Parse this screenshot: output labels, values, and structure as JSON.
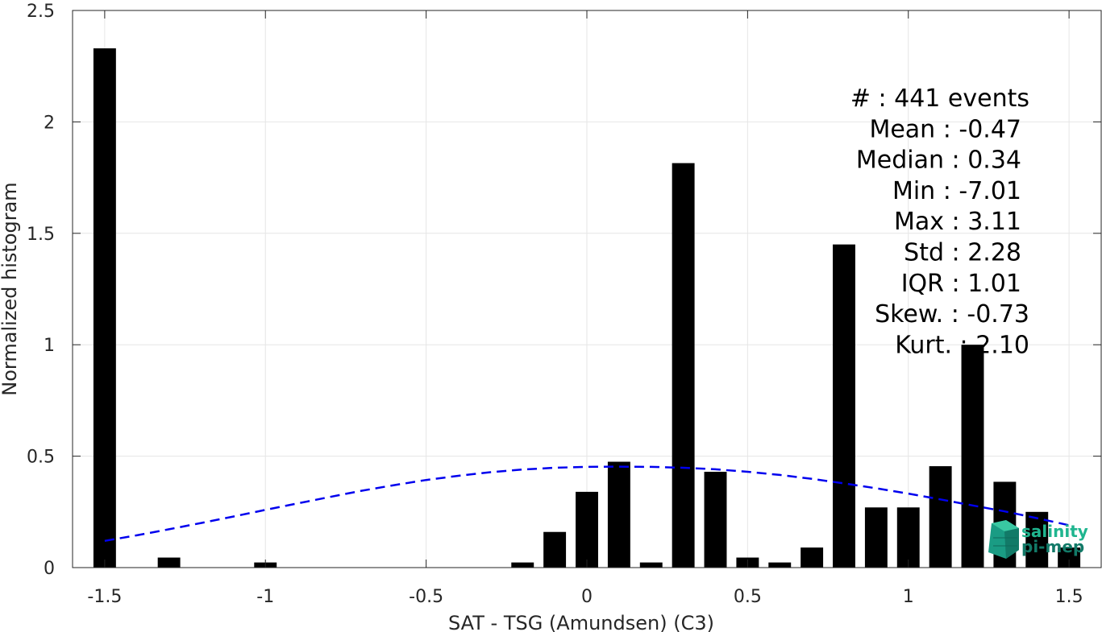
{
  "chart_data": {
    "type": "bar",
    "xlabel": "SAT - TSG (Amundsen) (C3)",
    "ylabel": "Normalized histogram",
    "xlim": [
      -1.6,
      1.6
    ],
    "ylim": [
      0,
      2.5
    ],
    "grid": true,
    "bar_color": "#000000",
    "bar_width": 0.07,
    "x_ticks": [
      {
        "value": -1.5,
        "label": "-1.5"
      },
      {
        "value": -1,
        "label": "-1"
      },
      {
        "value": -0.5,
        "label": "-0.5"
      },
      {
        "value": 0,
        "label": "0"
      },
      {
        "value": 0.5,
        "label": "0.5"
      },
      {
        "value": 1,
        "label": "1"
      },
      {
        "value": 1.5,
        "label": "1.5"
      }
    ],
    "y_ticks": [
      {
        "value": 0,
        "label": "0"
      },
      {
        "value": 0.5,
        "label": "0.5"
      },
      {
        "value": 1,
        "label": "1"
      },
      {
        "value": 1.5,
        "label": "1.5"
      },
      {
        "value": 2,
        "label": "2"
      },
      {
        "value": 2.5,
        "label": "2.5"
      }
    ],
    "bars": [
      {
        "x": -1.5,
        "y": 2.33
      },
      {
        "x": -1.3,
        "y": 0.045
      },
      {
        "x": -1.0,
        "y": 0.023
      },
      {
        "x": -0.2,
        "y": 0.023
      },
      {
        "x": -0.1,
        "y": 0.16
      },
      {
        "x": 0.0,
        "y": 0.34
      },
      {
        "x": 0.1,
        "y": 0.475
      },
      {
        "x": 0.2,
        "y": 0.023
      },
      {
        "x": 0.3,
        "y": 1.815
      },
      {
        "x": 0.4,
        "y": 0.43
      },
      {
        "x": 0.5,
        "y": 0.045
      },
      {
        "x": 0.6,
        "y": 0.023
      },
      {
        "x": 0.7,
        "y": 0.09
      },
      {
        "x": 0.8,
        "y": 1.45
      },
      {
        "x": 0.9,
        "y": 0.27
      },
      {
        "x": 1.0,
        "y": 0.27
      },
      {
        "x": 1.1,
        "y": 0.455
      },
      {
        "x": 1.2,
        "y": 1.0
      },
      {
        "x": 1.3,
        "y": 0.385
      },
      {
        "x": 1.4,
        "y": 0.25
      },
      {
        "x": 1.5,
        "y": 0.09
      }
    ],
    "fit_curve": {
      "style": "dashed",
      "color": "#0000ee",
      "x": [
        -1.5,
        -1.4,
        -1.3,
        -1.2,
        -1.1,
        -1.0,
        -0.9,
        -0.8,
        -0.7,
        -0.6,
        -0.5,
        -0.4,
        -0.3,
        -0.2,
        -0.1,
        0.0,
        0.1,
        0.2,
        0.3,
        0.4,
        0.5,
        0.6,
        0.7,
        0.8,
        0.9,
        1.0,
        1.1,
        1.2,
        1.3,
        1.4,
        1.5
      ],
      "y": [
        0.12,
        0.145,
        0.172,
        0.2,
        0.229,
        0.259,
        0.288,
        0.317,
        0.345,
        0.37,
        0.393,
        0.412,
        0.428,
        0.44,
        0.448,
        0.452,
        0.453,
        0.452,
        0.448,
        0.441,
        0.43,
        0.416,
        0.398,
        0.378,
        0.356,
        0.332,
        0.306,
        0.279,
        0.252,
        0.222,
        0.19
      ]
    },
    "stats": [
      "#  : 441 events",
      "Mean : -0.47",
      "Median : 0.34",
      "Min : -7.01",
      "Max : 3.11",
      "Std : 2.28",
      "IQR : 1.01",
      "Skew. : -0.73",
      "Kurt. : 2.10"
    ]
  },
  "logo": {
    "line1": "salinity",
    "line2": "pi-mep",
    "color_text": "#1fb58f",
    "color_cube": "#1a9c84"
  },
  "colors": {
    "grid": "#e6e6e6",
    "axis": "#262626",
    "background": "#ffffff"
  }
}
